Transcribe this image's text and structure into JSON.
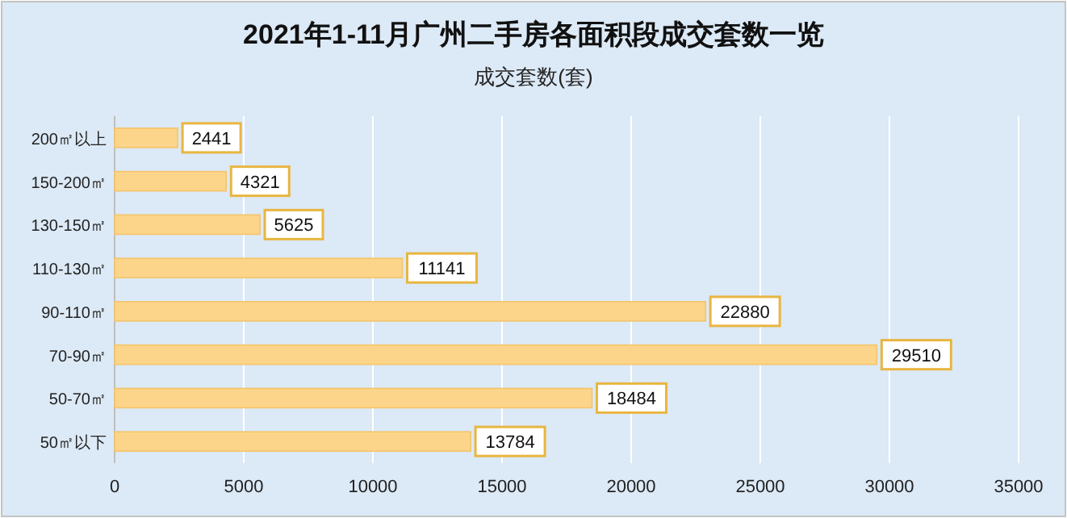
{
  "chart_data": {
    "type": "bar",
    "orientation": "horizontal",
    "title": "2021年1-11月广州二手房各面积段成交套数一览",
    "subtitle": "成交套数(套)",
    "categories": [
      "200㎡以上",
      "150-200㎡",
      "130-150㎡",
      "110-130㎡",
      "90-110㎡",
      "70-90㎡",
      "50-70㎡",
      "50㎡以下"
    ],
    "values": [
      2441,
      4321,
      5625,
      11141,
      22880,
      29510,
      18484,
      13784
    ],
    "color": "#fdd58a",
    "xlim": [
      0,
      35000
    ],
    "xticks": [
      0,
      5000,
      10000,
      15000,
      20000,
      25000,
      30000,
      35000
    ],
    "grid": "x",
    "data_labels": true
  }
}
